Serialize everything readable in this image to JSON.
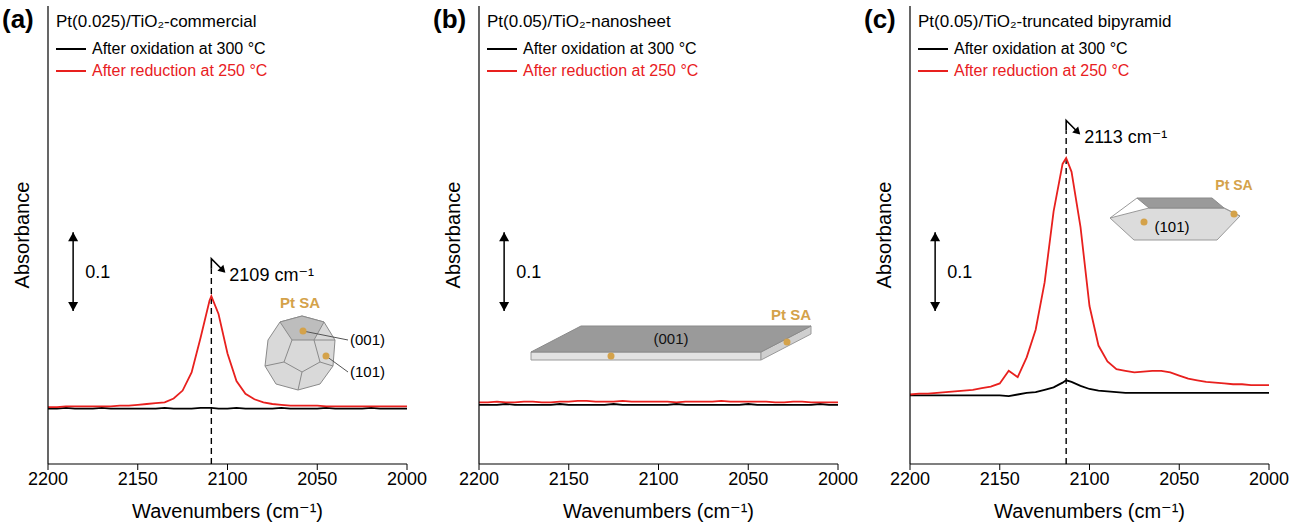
{
  "chart_data": [
    {
      "type": "line",
      "label": "(a)",
      "title": "Pt(0.025)/TiO₂-commercial",
      "x_label": "Wavenumbers (cm⁻¹)",
      "y_label": "Absorbance",
      "x": [
        2200,
        2195,
        2190,
        2185,
        2180,
        2175,
        2170,
        2165,
        2160,
        2155,
        2150,
        2145,
        2140,
        2135,
        2130,
        2125,
        2120,
        2115,
        2110,
        2109,
        2105,
        2100,
        2095,
        2090,
        2085,
        2080,
        2075,
        2070,
        2065,
        2060,
        2055,
        2050,
        2045,
        2040,
        2035,
        2030,
        2025,
        2020,
        2015,
        2010,
        2005,
        2000
      ],
      "series": [
        {
          "name": "After oxidation at 300 °C",
          "color": "#000000",
          "values": [
            0.07,
            0.07,
            0.071,
            0.07,
            0.07,
            0.07,
            0.071,
            0.07,
            0.07,
            0.07,
            0.07,
            0.07,
            0.07,
            0.071,
            0.07,
            0.07,
            0.07,
            0.071,
            0.071,
            0.071,
            0.07,
            0.07,
            0.071,
            0.07,
            0.07,
            0.07,
            0.07,
            0.071,
            0.07,
            0.07,
            0.07,
            0.07,
            0.071,
            0.07,
            0.07,
            0.07,
            0.07,
            0.071,
            0.07,
            0.07,
            0.07,
            0.07
          ]
        },
        {
          "name": "After reduction at 250 °C",
          "color": "#e8201e",
          "values": [
            0.072,
            0.072,
            0.073,
            0.073,
            0.073,
            0.073,
            0.073,
            0.073,
            0.074,
            0.074,
            0.075,
            0.076,
            0.077,
            0.078,
            0.083,
            0.093,
            0.116,
            0.16,
            0.207,
            0.2125,
            0.19,
            0.14,
            0.105,
            0.089,
            0.082,
            0.078,
            0.076,
            0.075,
            0.074,
            0.074,
            0.074,
            0.074,
            0.073,
            0.073,
            0.073,
            0.073,
            0.073,
            0.073,
            0.073,
            0.073,
            0.073,
            0.073
          ]
        }
      ],
      "xlim": [
        2200,
        2000
      ],
      "xticks": [
        2200,
        2150,
        2100,
        2050,
        2000
      ],
      "ylim": [
        0,
        0.58
      ],
      "tick_labels": "x",
      "grid": false,
      "legend": "upper left",
      "scale_bar": 0.1,
      "annotations": [
        {
          "text": "2109 cm⁻¹",
          "x": 2109
        }
      ],
      "inset_labels": [
        "Pt SA",
        "(001)",
        "(101)"
      ]
    },
    {
      "type": "line",
      "label": "(b)",
      "title": "Pt(0.05)/TiO₂-nanosheet",
      "x_label": "Wavenumbers (cm⁻¹)",
      "y_label": "Absorbance",
      "x": [
        2200,
        2195,
        2190,
        2185,
        2180,
        2175,
        2170,
        2165,
        2160,
        2155,
        2150,
        2145,
        2140,
        2135,
        2130,
        2125,
        2120,
        2115,
        2110,
        2105,
        2100,
        2095,
        2090,
        2085,
        2080,
        2075,
        2070,
        2065,
        2060,
        2055,
        2050,
        2045,
        2040,
        2035,
        2030,
        2025,
        2020,
        2015,
        2010,
        2005,
        2000
      ],
      "series": [
        {
          "name": "After oxidation at 300 °C",
          "color": "#000000",
          "values": [
            0.075,
            0.075,
            0.075,
            0.076,
            0.075,
            0.075,
            0.075,
            0.075,
            0.075,
            0.076,
            0.075,
            0.075,
            0.075,
            0.075,
            0.075,
            0.076,
            0.075,
            0.075,
            0.075,
            0.075,
            0.075,
            0.075,
            0.076,
            0.075,
            0.075,
            0.075,
            0.075,
            0.075,
            0.075,
            0.075,
            0.076,
            0.075,
            0.075,
            0.075,
            0.075,
            0.075,
            0.075,
            0.075,
            0.076,
            0.075,
            0.075
          ]
        },
        {
          "name": "After reduction at 250 °C",
          "color": "#e8201e",
          "values": [
            0.078,
            0.078,
            0.079,
            0.078,
            0.078,
            0.079,
            0.079,
            0.078,
            0.078,
            0.079,
            0.079,
            0.08,
            0.08,
            0.079,
            0.079,
            0.079,
            0.08,
            0.079,
            0.079,
            0.079,
            0.079,
            0.079,
            0.078,
            0.079,
            0.079,
            0.079,
            0.079,
            0.08,
            0.079,
            0.079,
            0.079,
            0.079,
            0.079,
            0.078,
            0.078,
            0.079,
            0.079,
            0.078,
            0.078,
            0.078,
            0.078
          ]
        }
      ],
      "xlim": [
        2200,
        2000
      ],
      "xticks": [
        2200,
        2150,
        2100,
        2050,
        2000
      ],
      "ylim": [
        0,
        0.58
      ],
      "tick_labels": "x",
      "grid": false,
      "legend": "upper left",
      "scale_bar": 0.1,
      "inset_labels": [
        "(001)",
        "Pt SA"
      ]
    },
    {
      "type": "line",
      "label": "(c)",
      "title": "Pt(0.05)/TiO₂-truncated bipyramid",
      "x_label": "Wavenumbers (cm⁻¹)",
      "y_label": "Absorbance",
      "x": [
        2200,
        2195,
        2190,
        2185,
        2180,
        2175,
        2170,
        2165,
        2160,
        2155,
        2150,
        2145,
        2140,
        2135,
        2130,
        2125,
        2120,
        2115,
        2113,
        2110,
        2105,
        2100,
        2095,
        2090,
        2085,
        2080,
        2075,
        2070,
        2065,
        2060,
        2055,
        2050,
        2045,
        2040,
        2035,
        2030,
        2025,
        2020,
        2015,
        2010,
        2005,
        2000
      ],
      "series": [
        {
          "name": "After oxidation at 300 °C",
          "color": "#000000",
          "values": [
            0.087,
            0.087,
            0.087,
            0.087,
            0.087,
            0.087,
            0.087,
            0.087,
            0.087,
            0.087,
            0.087,
            0.086,
            0.088,
            0.09,
            0.091,
            0.094,
            0.097,
            0.103,
            0.106,
            0.104,
            0.099,
            0.095,
            0.093,
            0.092,
            0.091,
            0.09,
            0.09,
            0.09,
            0.09,
            0.09,
            0.09,
            0.09,
            0.09,
            0.09,
            0.09,
            0.09,
            0.09,
            0.09,
            0.09,
            0.09,
            0.09,
            0.09
          ]
        },
        {
          "name": "After reduction at 250 °C",
          "color": "#e8201e",
          "values": [
            0.088,
            0.089,
            0.089,
            0.09,
            0.091,
            0.092,
            0.093,
            0.094,
            0.096,
            0.098,
            0.102,
            0.118,
            0.11,
            0.135,
            0.17,
            0.23,
            0.32,
            0.38,
            0.3875,
            0.37,
            0.3,
            0.2,
            0.15,
            0.13,
            0.12,
            0.118,
            0.116,
            0.117,
            0.118,
            0.118,
            0.116,
            0.112,
            0.108,
            0.106,
            0.104,
            0.103,
            0.102,
            0.101,
            0.101,
            0.1,
            0.1,
            0.1
          ]
        }
      ],
      "xlim": [
        2200,
        2000
      ],
      "xticks": [
        2200,
        2150,
        2100,
        2050,
        2000
      ],
      "ylim": [
        0,
        0.58
      ],
      "tick_labels": "x",
      "grid": false,
      "legend": "upper left",
      "scale_bar": 0.1,
      "annotations": [
        {
          "text": "2113 cm⁻¹",
          "x": 2113
        }
      ],
      "inset_labels": [
        "Pt SA",
        "(101)"
      ]
    }
  ]
}
